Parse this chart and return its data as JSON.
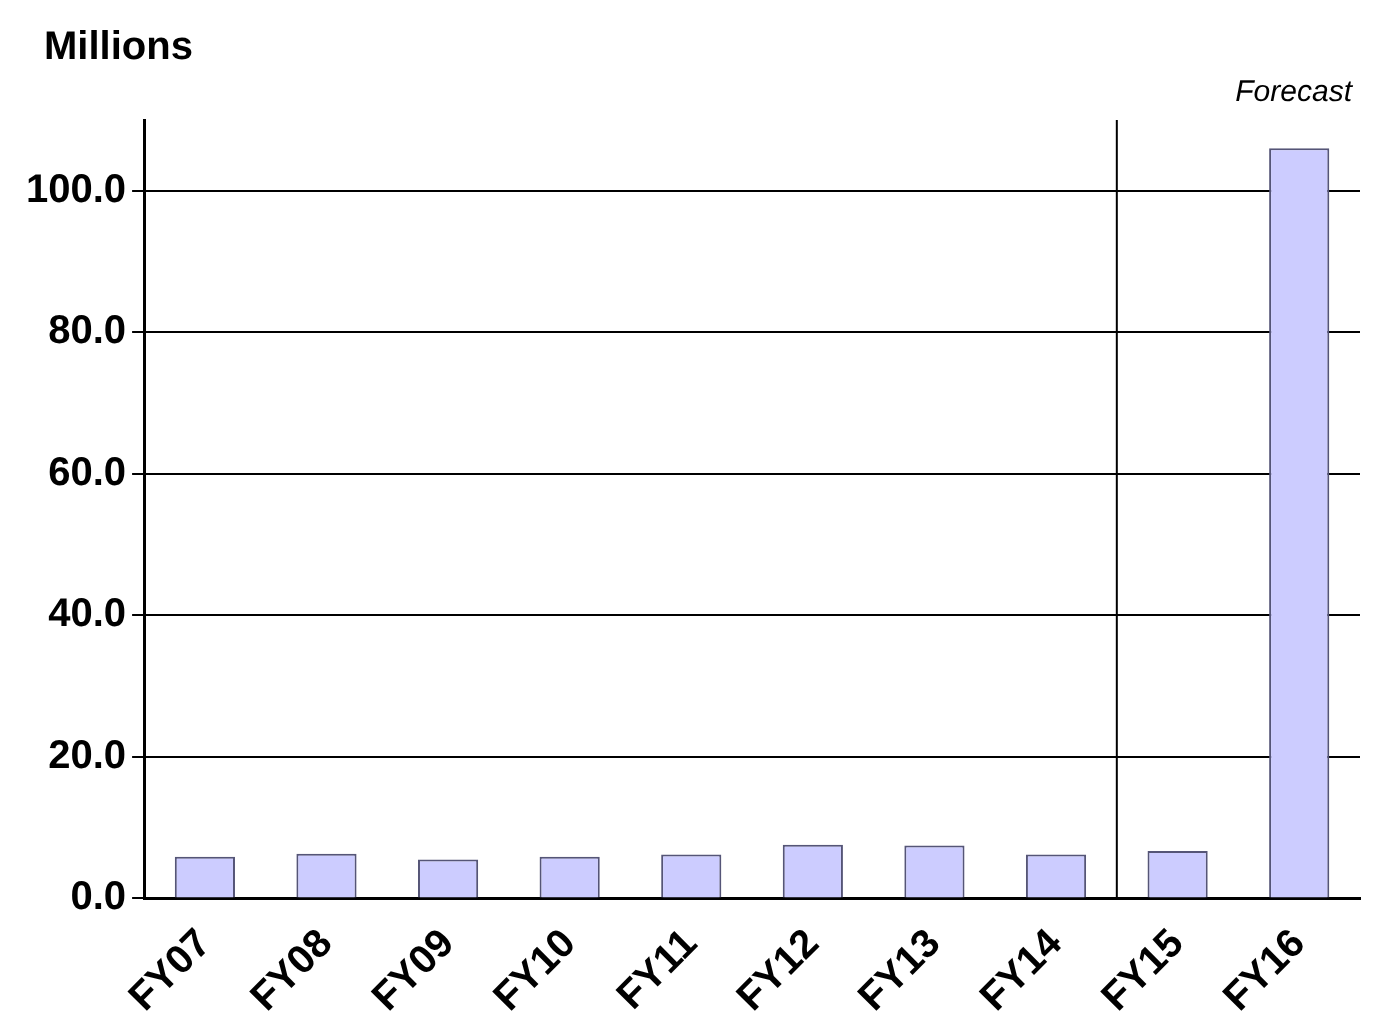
{
  "chart_data": {
    "type": "bar",
    "ylabel": "Millions",
    "annotations": [
      "Forecast"
    ],
    "categories": [
      "FY07",
      "FY08",
      "FY09",
      "FY10",
      "FY11",
      "FY12",
      "FY13",
      "FY14",
      "FY15",
      "FY16"
    ],
    "values": [
      5.9,
      6.3,
      5.5,
      5.9,
      6.2,
      7.6,
      7.5,
      6.2,
      6.7,
      106
    ],
    "color": "#ccccff",
    "ylim": [
      0,
      110
    ],
    "yticks": [
      {
        "value": 0,
        "label": "0.0"
      },
      {
        "value": 20,
        "label": "20.0"
      },
      {
        "value": 40,
        "label": "40.0"
      },
      {
        "value": 60,
        "label": "60.0"
      },
      {
        "value": 80,
        "label": "80.0"
      },
      {
        "value": 100,
        "label": "100.0"
      }
    ],
    "grid": "y",
    "legend": false
  }
}
